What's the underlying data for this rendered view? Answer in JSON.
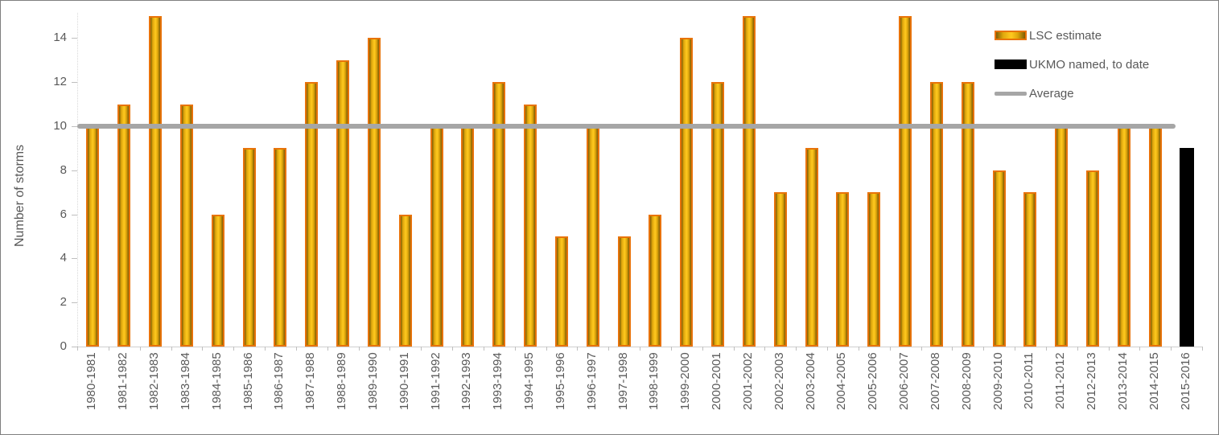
{
  "chart_data": {
    "type": "bar",
    "title": "",
    "xlabel": "",
    "ylabel": "Number of storms",
    "ylim": [
      0,
      15
    ],
    "yticks": [
      0,
      2,
      4,
      6,
      8,
      10,
      12,
      14
    ],
    "grid": false,
    "legend_position": "top-right",
    "categories": [
      "1980-1981",
      "1981-1982",
      "1982-1983",
      "1983-1984",
      "1984-1985",
      "1985-1986",
      "1986-1987",
      "1987-1988",
      "1988-1989",
      "1989-1990",
      "1990-1991",
      "1991-1992",
      "1992-1993",
      "1993-1994",
      "1994-1995",
      "1995-1996",
      "1996-1997",
      "1997-1998",
      "1998-1999",
      "1999-2000",
      "2000-2001",
      "2001-2002",
      "2002-2003",
      "2003-2004",
      "2004-2005",
      "2005-2006",
      "2006-2007",
      "2007-2008",
      "2008-2009",
      "2009-2010",
      "2010-2011",
      "2011-2012",
      "2012-2013",
      "2013-2014",
      "2014-2015",
      "2015-2016"
    ],
    "series": [
      {
        "name": "LSC estimate",
        "type": "bar",
        "values": [
          10,
          11,
          15,
          11,
          6,
          9,
          9,
          12,
          13,
          14,
          6,
          10,
          10,
          12,
          11,
          5,
          10,
          5,
          6,
          14,
          12,
          15,
          7,
          9,
          7,
          7,
          15,
          12,
          12,
          8,
          7,
          10,
          8,
          10,
          10,
          null
        ]
      },
      {
        "name": "UKMO named, to date",
        "type": "bar",
        "values": [
          null,
          null,
          null,
          null,
          null,
          null,
          null,
          null,
          null,
          null,
          null,
          null,
          null,
          null,
          null,
          null,
          null,
          null,
          null,
          null,
          null,
          null,
          null,
          null,
          null,
          null,
          null,
          null,
          null,
          null,
          null,
          null,
          null,
          null,
          null,
          9
        ]
      },
      {
        "name": "Average",
        "type": "line",
        "value": 10
      }
    ],
    "colors": {
      "lsc_border": "#e8730a",
      "lsc_bright": "#ffc91f",
      "lsc_mid": "#dfa70c",
      "lsc_dark": "#7e5c05",
      "ukmo": "#000000",
      "average": "#a6a6a6",
      "axis_text": "#595959",
      "axis_line": "#cfcfcf"
    }
  }
}
